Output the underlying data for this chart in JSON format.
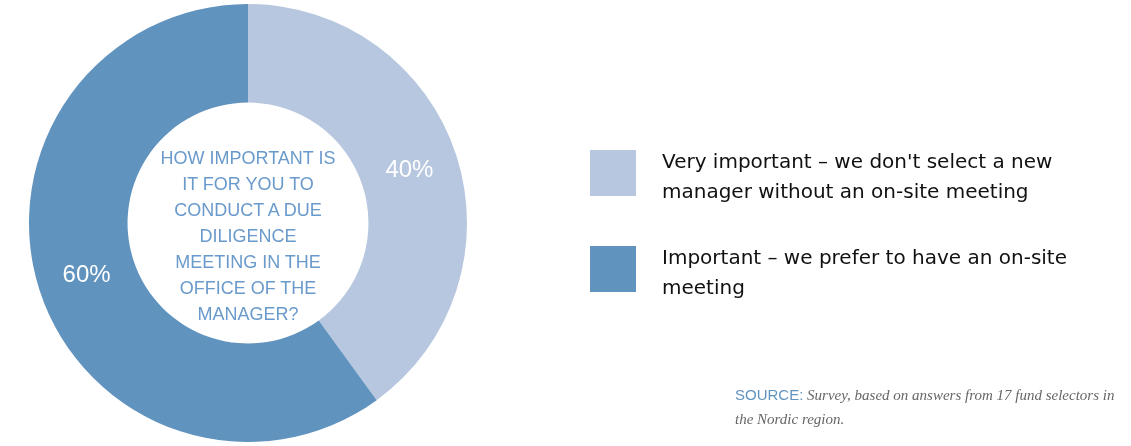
{
  "chart_data": {
    "type": "donut",
    "title": "HOW IMPORTANT IS IT FOR YOU TO CONDUCT A DUE DILIGENCE MEETING IN THE OFFICE OF THE MANAGER?",
    "categories": [
      "Very important – we don't select a new manager without an on-site meeting",
      "Important – we prefer to have an on-site meeting"
    ],
    "values": [
      40,
      60
    ],
    "colors": [
      "#b7c7df",
      "#6193bf"
    ],
    "value_labels": [
      "40%",
      "60%"
    ],
    "legend": "right",
    "annotations": [
      "SOURCE: Survey, based on answers from 17 fund selectors in the Nordic region."
    ]
  }
}
